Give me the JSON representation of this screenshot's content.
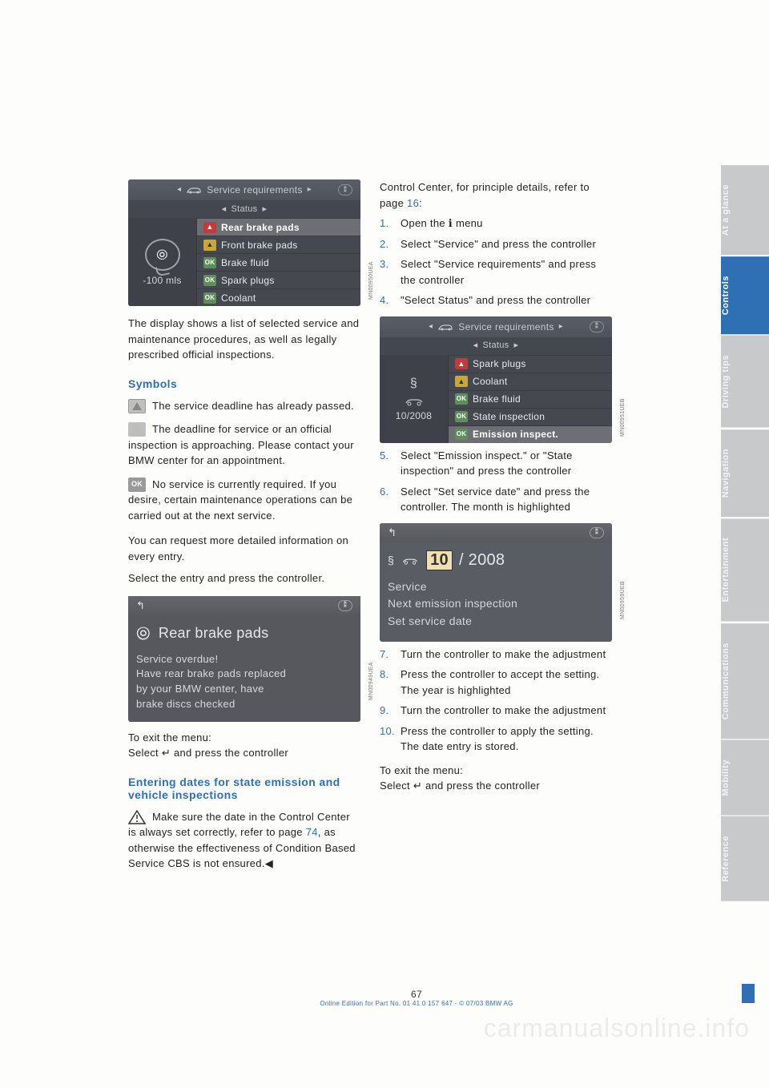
{
  "page_number": "67",
  "footer_line": "Online Edition for Part No. 01 41 0 157 647 - © 07/03 BMW AG",
  "watermark": "carmanualsonline.info",
  "side_tabs": [
    {
      "label": "At a glance",
      "active": false
    },
    {
      "label": "Controls",
      "active": true
    },
    {
      "label": "Driving tips",
      "active": false
    },
    {
      "label": "Navigation",
      "active": false
    },
    {
      "label": "Entertainment",
      "active": false
    },
    {
      "label": "Communications",
      "active": false
    },
    {
      "label": "Mobility",
      "active": false
    },
    {
      "label": "Reference",
      "active": false
    }
  ],
  "fig1": {
    "top_label": "Service requirements",
    "sub_label": "Status",
    "left_value": "-100  mls",
    "rows": [
      {
        "badge": "red",
        "label": "Rear brake pads",
        "sel": true
      },
      {
        "badge": "yel",
        "label": "Front brake pads"
      },
      {
        "badge": "grn",
        "badge_text": "OK",
        "label": "Brake fluid"
      },
      {
        "badge": "grn",
        "badge_text": "OK",
        "label": "Spark plugs"
      },
      {
        "badge": "grn",
        "badge_text": "OK",
        "label": "Coolant"
      }
    ],
    "code": "MN00950UEA"
  },
  "intro_para": "The display shows a list of selected service and maintenance procedures, as well as legally prescribed official inspections.",
  "symbols_heading": "Symbols",
  "symbol_red": "The service deadline has already passed.",
  "symbol_yel": "The deadline for service or an official inspection is approaching. Please contact your BMW center for an appointment.",
  "symbol_grn": "No service is currently required. If you desire, certain maintenance operations can be carried out at the next service.",
  "symbols_tail_1": "You can request more detailed information on every entry.",
  "symbols_tail_2": "Select the entry and press the controller.",
  "fig2": {
    "title": "Rear brake pads",
    "line1": "Service overdue!",
    "line2": "Have rear brake pads replaced",
    "line3": "by your BMW center, have",
    "line4": "brake discs checked",
    "code": "MN00949UEA"
  },
  "exit_menu": "To exit the menu:",
  "exit_menu_2": "Select ↵ and press the controller",
  "dates_heading": "Entering dates for state emission and vehicle inspections",
  "dates_warn_a": "Make sure the date in the Control Center is always set correctly, refer to page ",
  "dates_warn_page": "74",
  "dates_warn_b": ", as otherwise the effectiveness of Condition Based Service CBS is not ensured.",
  "right_intro_a": "Control Center, for principle details, refer to page ",
  "right_intro_page": "16",
  "right_intro_b": ":",
  "steps1": [
    {
      "n": "1.",
      "t": "Open the ℹ menu"
    },
    {
      "n": "2.",
      "t": "Select \"Service\" and press the controller"
    },
    {
      "n": "3.",
      "t": "Select \"Service requirements\" and press the controller"
    },
    {
      "n": "4.",
      "t": "\"Select Status\" and press the controller"
    }
  ],
  "fig3": {
    "top_label": "Service requirements",
    "sub_label": "Status",
    "left_value": "10/2008",
    "rows": [
      {
        "badge": "red",
        "label": "Spark plugs"
      },
      {
        "badge": "yel",
        "label": "Coolant"
      },
      {
        "badge": "grn",
        "badge_text": "OK",
        "label": "Brake fluid"
      },
      {
        "badge": "grn",
        "badge_text": "OK",
        "label": "State inspection"
      },
      {
        "badge": "grn",
        "badge_text": "OK",
        "label": "Emission inspect.",
        "sel": true
      }
    ],
    "code": "MN00951UEB"
  },
  "steps2": [
    {
      "n": "5.",
      "t": "Select \"Emission inspect.\" or \"State inspection\" and press the controller"
    },
    {
      "n": "6.",
      "t": "Select \"Set service date\" and press the controller. The month is highlighted"
    }
  ],
  "fig4": {
    "month": "10",
    "year": "/ 2008",
    "line1": "Service",
    "line2": "Next emission inspection",
    "line3": "Set service date",
    "code": "MN00959UEB"
  },
  "steps3": [
    {
      "n": "7.",
      "t": "Turn the controller to make the adjustment"
    },
    {
      "n": "8.",
      "t": "Press the controller to accept the setting. The year is highlighted"
    },
    {
      "n": "9.",
      "t": "Turn the controller to make the adjustment"
    },
    {
      "n": "10.",
      "t": "Press the controller to apply the setting. The date entry is stored."
    }
  ],
  "exit2_a": "To exit the menu:",
  "exit2_b": "Select ↵ and press the controller"
}
